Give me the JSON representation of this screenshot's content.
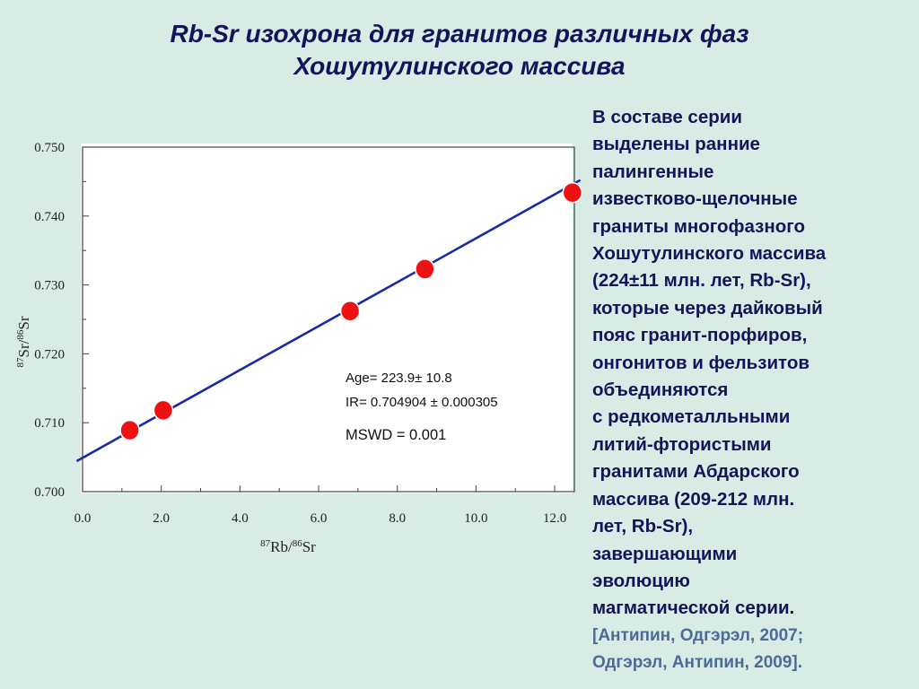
{
  "slide": {
    "title_lines": [
      "Rb-Sr изохрона для гранитов различных фаз",
      "Хошутулинского массива"
    ],
    "body_lines": [
      "В составе серии",
      "выделены ранние",
      "палингенные",
      "известково-щелочные",
      "граниты многофазного",
      "Хошутулинского массива",
      "(224±11 млн. лет, Rb-Sr),",
      "которые через дайковый",
      "пояс гранит-порфиров,",
      "онгонитов и фельзитов",
      "объединяются",
      "с редкометалльными",
      "литий-фтористыми",
      "гранитами Абдарского",
      "массива (209-212 млн.",
      "лет, Rb-Sr),",
      "завершающими",
      "эволюцию",
      "магматической серии."
    ],
    "reference_lines": [
      "[Антипин, Одгэрэл, 2007;",
      "Одгэрэл, Антипин, 2009]."
    ]
  },
  "chart_data": {
    "type": "scatter",
    "title": "",
    "xlabel": "87Rb/86Sr",
    "ylabel": "87Sr/86Sr",
    "xlim": [
      0,
      12.5
    ],
    "ylim": [
      0.7,
      0.75
    ],
    "x_ticks": [
      "0.0",
      "2.0",
      "4.0",
      "6.0",
      "8.0",
      "10.0",
      "12.0"
    ],
    "y_ticks": [
      "0.700",
      "0.710",
      "0.720",
      "0.730",
      "0.740",
      "0.750"
    ],
    "grid": false,
    "series": [
      {
        "points": [
          {
            "x": 1.2,
            "y": 0.7089
          },
          {
            "x": 2.05,
            "y": 0.7118
          },
          {
            "x": 6.8,
            "y": 0.7262
          },
          {
            "x": 8.7,
            "y": 0.7323
          },
          {
            "x": 12.45,
            "y": 0.7434
          }
        ]
      }
    ],
    "isochron": {
      "x": [
        0,
        12.5
      ],
      "y": [
        0.704904,
        0.744735
      ]
    },
    "annotations": [
      "Age= 223.9± 10.8",
      "IR= 0.704904 ± 0.000305",
      "MSWD = 0.001"
    ],
    "colors": {
      "points": "#ee1111",
      "line": "#1a2aa6",
      "axis": "#444444"
    }
  }
}
